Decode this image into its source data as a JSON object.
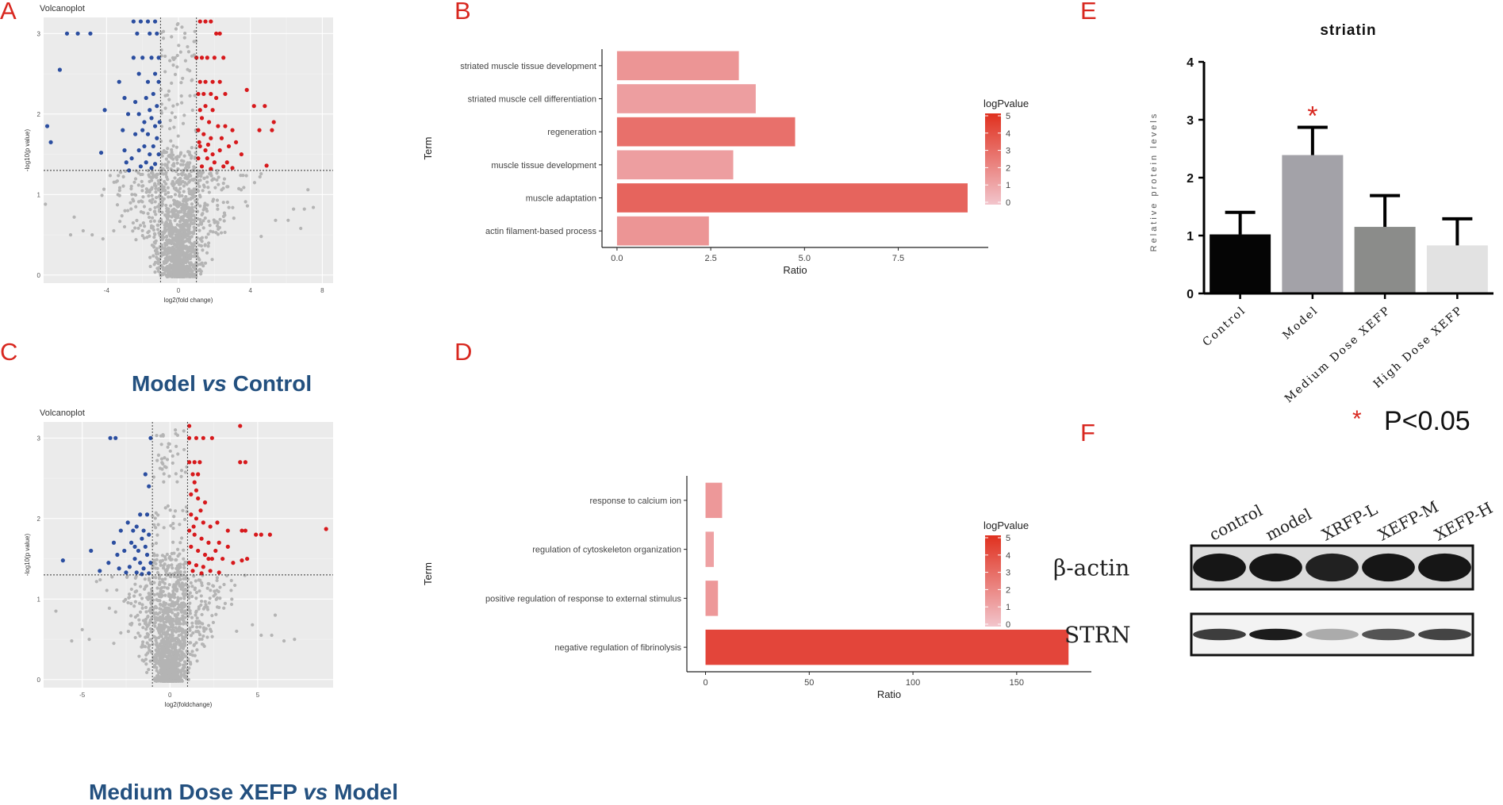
{
  "panels": {
    "A": "A",
    "B": "B",
    "C": "C",
    "D": "D",
    "E": "E",
    "F": "F"
  },
  "colors": {
    "up": "#d7191c",
    "down": "#2b4ea0",
    "ns": "#b4b4b4",
    "panel_bg": "#ebebeb",
    "caption": "#23507f",
    "bar_gradient_low": "#f2c5cc",
    "bar_gradient_high": "#e0301e"
  },
  "chart_data": [
    {
      "id": "A",
      "type": "scatter",
      "title": "Volcanoplot",
      "xlabel": "log2(fold change)",
      "ylabel": "-log10(p value)",
      "xlim": [
        -7.5,
        8.6
      ],
      "ylim": [
        -0.1,
        3.2
      ],
      "xticks": [
        -4,
        0,
        4,
        8
      ],
      "yticks": [
        0,
        1,
        2,
        3
      ],
      "fc_threshold": [
        -1,
        1
      ],
      "p_threshold": 1.3,
      "caption_parts": [
        "Model ",
        "vs",
        " Control"
      ],
      "up_points": [
        [
          1.2,
          3.15
        ],
        [
          1.5,
          3.15
        ],
        [
          1.8,
          3.15
        ],
        [
          2.1,
          3.0
        ],
        [
          2.3,
          3.0
        ],
        [
          1.0,
          2.7
        ],
        [
          1.3,
          2.7
        ],
        [
          1.6,
          2.7
        ],
        [
          2.0,
          2.7
        ],
        [
          2.5,
          2.7
        ],
        [
          1.2,
          2.4
        ],
        [
          1.5,
          2.4
        ],
        [
          1.9,
          2.4
        ],
        [
          2.3,
          2.4
        ],
        [
          1.1,
          2.25
        ],
        [
          1.4,
          2.25
        ],
        [
          1.8,
          2.25
        ],
        [
          2.6,
          2.25
        ],
        [
          3.8,
          2.3
        ],
        [
          4.2,
          2.1
        ],
        [
          4.8,
          2.1
        ],
        [
          2.1,
          2.2
        ],
        [
          1.2,
          2.05
        ],
        [
          1.5,
          2.1
        ],
        [
          1.9,
          2.05
        ],
        [
          1.3,
          1.95
        ],
        [
          1.7,
          1.9
        ],
        [
          2.2,
          1.85
        ],
        [
          2.6,
          1.85
        ],
        [
          3.0,
          1.8
        ],
        [
          4.5,
          1.8
        ],
        [
          5.3,
          1.9
        ],
        [
          5.2,
          1.8
        ],
        [
          1.1,
          1.8
        ],
        [
          1.4,
          1.75
        ],
        [
          1.8,
          1.7
        ],
        [
          2.4,
          1.7
        ],
        [
          2.8,
          1.6
        ],
        [
          3.2,
          1.65
        ],
        [
          1.2,
          1.6
        ],
        [
          1.5,
          1.55
        ],
        [
          1.9,
          1.5
        ],
        [
          2.3,
          1.55
        ],
        [
          3.5,
          1.5
        ],
        [
          1.1,
          1.45
        ],
        [
          1.6,
          1.45
        ],
        [
          2.0,
          1.4
        ],
        [
          2.5,
          1.35
        ],
        [
          1.3,
          1.35
        ],
        [
          1.8,
          1.32
        ],
        [
          3.0,
          1.33
        ],
        [
          4.9,
          1.36
        ],
        [
          2.7,
          1.4
        ],
        [
          1.15,
          1.65
        ],
        [
          1.65,
          1.62
        ]
      ],
      "down_points": [
        [
          -2.5,
          3.15
        ],
        [
          -2.1,
          3.15
        ],
        [
          -1.7,
          3.15
        ],
        [
          -1.3,
          3.15
        ],
        [
          -2.3,
          3.0
        ],
        [
          -5.6,
          3.0
        ],
        [
          -4.9,
          3.0
        ],
        [
          -6.2,
          3.0
        ],
        [
          -1.2,
          3.0
        ],
        [
          -1.6,
          3.0
        ],
        [
          -2.5,
          2.7
        ],
        [
          -2.0,
          2.7
        ],
        [
          -1.5,
          2.7
        ],
        [
          -1.1,
          2.7
        ],
        [
          -2.2,
          2.5
        ],
        [
          -1.3,
          2.5
        ],
        [
          -1.1,
          2.4
        ],
        [
          -3.3,
          2.4
        ],
        [
          -1.7,
          2.4
        ],
        [
          -6.6,
          2.55
        ],
        [
          -3.0,
          2.2
        ],
        [
          -1.4,
          2.25
        ],
        [
          -1.8,
          2.2
        ],
        [
          -2.4,
          2.15
        ],
        [
          -1.2,
          2.1
        ],
        [
          -1.6,
          2.05
        ],
        [
          -2.2,
          2.0
        ],
        [
          -4.1,
          2.05
        ],
        [
          -2.8,
          2.0
        ],
        [
          -1.5,
          1.95
        ],
        [
          -1.9,
          1.9
        ],
        [
          -1.3,
          1.85
        ],
        [
          -2.0,
          1.8
        ],
        [
          -1.7,
          1.75
        ],
        [
          -1.2,
          1.7
        ],
        [
          -2.4,
          1.75
        ],
        [
          -3.1,
          1.8
        ],
        [
          -1.4,
          1.6
        ],
        [
          -1.9,
          1.6
        ],
        [
          -2.2,
          1.55
        ],
        [
          -3.0,
          1.55
        ],
        [
          -1.1,
          1.5
        ],
        [
          -1.6,
          1.5
        ],
        [
          -4.3,
          1.52
        ],
        [
          -2.6,
          1.45
        ],
        [
          -1.8,
          1.4
        ],
        [
          -1.3,
          1.38
        ],
        [
          -2.1,
          1.35
        ],
        [
          -1.5,
          1.33
        ],
        [
          -2.9,
          1.4
        ],
        [
          -7.3,
          1.85
        ],
        [
          -7.1,
          1.65
        ],
        [
          -1.05,
          1.9
        ],
        [
          -2.75,
          1.3
        ]
      ],
      "ns_cloud": {
        "x_spread": 4.6,
        "count": 1500,
        "seed": 7
      },
      "ns_outliers": [
        [
          -7.4,
          0.88
        ],
        [
          -5.3,
          0.55
        ],
        [
          -4.2,
          0.45
        ],
        [
          -6.0,
          0.5
        ],
        [
          -4.8,
          0.5
        ],
        [
          -3.6,
          0.55
        ],
        [
          -3.0,
          0.6
        ],
        [
          -5.8,
          0.72
        ],
        [
          7.2,
          1.06
        ],
        [
          7.5,
          0.84
        ],
        [
          7.0,
          0.82
        ],
        [
          6.1,
          0.68
        ],
        [
          6.8,
          0.58
        ],
        [
          5.4,
          0.68
        ],
        [
          4.6,
          0.48
        ],
        [
          6.4,
          0.82
        ]
      ],
      "ns_threshold_band": {
        "x_min": -1.0,
        "x_max": 1.0,
        "y_min": 1.3,
        "y_max": 3.15
      }
    },
    {
      "id": "C",
      "type": "scatter",
      "title": "Volcanoplot",
      "xlabel": "log2(foldchange)",
      "ylabel": "-log10(p value)",
      "xlim": [
        -7.2,
        9.3
      ],
      "ylim": [
        -0.1,
        3.2
      ],
      "xticks": [
        -5,
        0,
        5
      ],
      "yticks": [
        0,
        1,
        2,
        3
      ],
      "fc_threshold": [
        -1,
        1
      ],
      "p_threshold": 1.3,
      "caption_parts": [
        "Medium Dose XEFP ",
        "vs",
        " Model"
      ],
      "up_points": [
        [
          1.1,
          3.15
        ],
        [
          4.0,
          3.15
        ],
        [
          1.1,
          3.0
        ],
        [
          1.5,
          3.0
        ],
        [
          1.9,
          3.0
        ],
        [
          2.4,
          3.0
        ],
        [
          1.1,
          2.7
        ],
        [
          1.4,
          2.7
        ],
        [
          1.7,
          2.7
        ],
        [
          4.0,
          2.7
        ],
        [
          4.3,
          2.7
        ],
        [
          1.3,
          2.55
        ],
        [
          1.6,
          2.55
        ],
        [
          1.4,
          2.45
        ],
        [
          1.5,
          2.35
        ],
        [
          1.2,
          2.3
        ],
        [
          1.6,
          2.25
        ],
        [
          2.0,
          2.2
        ],
        [
          1.2,
          2.05
        ],
        [
          1.5,
          2.0
        ],
        [
          1.9,
          1.95
        ],
        [
          2.3,
          1.9
        ],
        [
          2.7,
          1.95
        ],
        [
          3.3,
          1.85
        ],
        [
          4.1,
          1.85
        ],
        [
          1.1,
          1.85
        ],
        [
          1.4,
          1.8
        ],
        [
          1.8,
          1.75
        ],
        [
          2.2,
          1.7
        ],
        [
          2.8,
          1.7
        ],
        [
          3.3,
          1.65
        ],
        [
          4.3,
          1.85
        ],
        [
          4.9,
          1.8
        ],
        [
          5.2,
          1.8
        ],
        [
          5.7,
          1.8
        ],
        [
          8.9,
          1.87
        ],
        [
          1.2,
          1.65
        ],
        [
          1.6,
          1.6
        ],
        [
          2.0,
          1.55
        ],
        [
          2.4,
          1.5
        ],
        [
          3.0,
          1.5
        ],
        [
          4.4,
          1.5
        ],
        [
          4.1,
          1.48
        ],
        [
          1.1,
          1.45
        ],
        [
          1.5,
          1.42
        ],
        [
          1.9,
          1.4
        ],
        [
          2.3,
          1.35
        ],
        [
          2.8,
          1.33
        ],
        [
          1.3,
          1.35
        ],
        [
          1.8,
          1.32
        ],
        [
          2.2,
          1.5
        ],
        [
          1.35,
          1.9
        ],
        [
          1.75,
          2.1
        ],
        [
          2.6,
          1.6
        ],
        [
          3.6,
          1.45
        ]
      ],
      "down_points": [
        [
          -3.1,
          3.0
        ],
        [
          -3.4,
          3.0
        ],
        [
          -1.1,
          3.0
        ],
        [
          -1.4,
          2.55
        ],
        [
          -1.2,
          2.4
        ],
        [
          -1.7,
          2.05
        ],
        [
          -1.3,
          2.05
        ],
        [
          -2.4,
          1.95
        ],
        [
          -1.9,
          1.9
        ],
        [
          -1.5,
          1.85
        ],
        [
          -2.1,
          1.85
        ],
        [
          -2.8,
          1.85
        ],
        [
          -1.2,
          1.8
        ],
        [
          -1.6,
          1.75
        ],
        [
          -2.2,
          1.7
        ],
        [
          -1.4,
          1.65
        ],
        [
          -3.2,
          1.7
        ],
        [
          -4.5,
          1.6
        ],
        [
          -1.8,
          1.6
        ],
        [
          -2.6,
          1.6
        ],
        [
          -1.3,
          1.55
        ],
        [
          -2.0,
          1.5
        ],
        [
          -1.1,
          1.45
        ],
        [
          -1.7,
          1.45
        ],
        [
          -3.5,
          1.45
        ],
        [
          -2.3,
          1.4
        ],
        [
          -1.5,
          1.38
        ],
        [
          -2.9,
          1.38
        ],
        [
          -6.1,
          1.48
        ],
        [
          -4.0,
          1.35
        ],
        [
          -1.9,
          1.33
        ],
        [
          -2.5,
          1.33
        ],
        [
          -1.2,
          1.32
        ],
        [
          -1.6,
          1.31
        ],
        [
          -3.0,
          1.55
        ],
        [
          -2.0,
          1.65
        ]
      ],
      "ns_cloud": {
        "x_spread": 4.0,
        "count": 1400,
        "seed": 13
      },
      "ns_outliers": [
        [
          -6.5,
          0.85
        ],
        [
          -5.6,
          0.48
        ],
        [
          -4.6,
          0.5
        ],
        [
          -3.2,
          0.45
        ],
        [
          -2.8,
          0.58
        ],
        [
          -5.0,
          0.62
        ],
        [
          6.5,
          0.48
        ],
        [
          7.1,
          0.5
        ],
        [
          5.8,
          0.55
        ],
        [
          6.0,
          0.8
        ],
        [
          5.2,
          0.55
        ],
        [
          4.7,
          0.68
        ],
        [
          3.8,
          0.6
        ]
      ],
      "ns_threshold_band": {
        "x_min": -1.0,
        "x_max": 1.0,
        "y_min": 1.3,
        "y_max": 3.15
      }
    },
    {
      "id": "B",
      "type": "bar",
      "orientation": "horizontal",
      "categories": [
        "striated muscle tissue development",
        "striated muscle cell differentiation",
        "regeneration",
        "muscle tissue development",
        "muscle adaptation",
        "actin filament-based process"
      ],
      "values": [
        3.25,
        3.7,
        4.75,
        3.1,
        9.35,
        2.45
      ],
      "color_values": [
        1.6,
        1.3,
        2.8,
        1.3,
        3.2,
        1.6
      ],
      "xlabel": "Ratio",
      "ylabel": "Term",
      "xlim": [
        -0.4,
        9.9
      ],
      "xticks": [
        0.0,
        2.5,
        5.0,
        7.5
      ],
      "xtick_labels": [
        "0.0",
        "2.5",
        "5.0",
        "7.5"
      ],
      "legend": {
        "title": "logPvalue",
        "ticks": [
          0,
          1,
          2,
          3,
          4,
          5
        ]
      }
    },
    {
      "id": "D",
      "type": "bar",
      "orientation": "horizontal",
      "categories": [
        "response to calcium ion",
        "regulation of cytoskeleton organization",
        "positive regulation of response to external stimulus",
        "negative regulation of fibrinolysis"
      ],
      "values": [
        8,
        4,
        6,
        175
      ],
      "color_values": [
        1.5,
        1.2,
        1.5,
        4.2
      ],
      "xlabel": "Ratio",
      "ylabel": "Term",
      "xlim": [
        -9,
        186
      ],
      "xticks": [
        0,
        50,
        100,
        150
      ],
      "xtick_labels": [
        "0",
        "50",
        "100",
        "150"
      ],
      "legend": {
        "title": "logPvalue",
        "ticks": [
          0,
          1,
          2,
          3,
          4,
          5
        ]
      }
    },
    {
      "id": "E",
      "type": "bar",
      "title": "striatin",
      "categories": [
        "Control",
        "Model",
        "Medium Dose XEFP",
        "High Dose XEFP"
      ],
      "values": [
        1.02,
        2.39,
        1.15,
        0.83
      ],
      "errors": [
        0.38,
        0.48,
        0.54,
        0.46
      ],
      "bar_colors": [
        "#050505",
        "#a3a2a8",
        "#8b8c8a",
        "#e2e2e2"
      ],
      "significant": [
        false,
        true,
        false,
        false
      ],
      "ylabel": "Relative protein levels",
      "ylim": [
        0,
        4
      ],
      "yticks": [
        0,
        1,
        2,
        3,
        4
      ],
      "significance_mark": "*",
      "significance_note": "P<0.05"
    }
  ],
  "blot": {
    "lanes": [
      "control",
      "model",
      "XRFP-L",
      "XEFP-M",
      "XEFP-H"
    ],
    "rows": [
      {
        "label": "β-actin",
        "intensities": [
          0.95,
          0.95,
          0.9,
          0.95,
          0.95
        ]
      },
      {
        "label": "STRN",
        "intensities": [
          0.78,
          0.92,
          0.3,
          0.68,
          0.75
        ]
      }
    ]
  }
}
